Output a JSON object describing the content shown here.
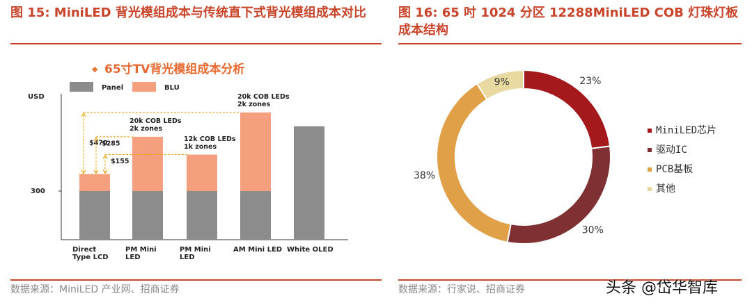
{
  "chart_data": [
    {
      "type": "bar",
      "stacked": true,
      "heading": "图 15: MiniLED 背光模组成本与传统直下式背光模组成本对比",
      "title": "65寸TV背光模组成本分析",
      "y_label": "USD",
      "categories": [
        "Direct Type LCD",
        "PM Mini LED",
        "PM Mini LED",
        "AM Mini LED",
        "White OLED"
      ],
      "series": [
        {
          "name": "Panel",
          "color": "#8c8c8c",
          "values": [
            300,
            300,
            300,
            300,
            700
          ]
        },
        {
          "name": "BLU",
          "color": "#f4a07e",
          "values": [
            105,
            335,
            225,
            485,
            null
          ]
        }
      ],
      "ylim": [
        0,
        900
      ],
      "yticks": [
        300
      ],
      "grid": false,
      "annotations": [
        "$470",
        "$285",
        "$155"
      ],
      "bar_notes": [
        "20k COB LEDs 2k zones",
        "12k COB LEDs 1k zones",
        "20k COB LEDs 2k zones"
      ],
      "source": "数据来源：MiniLED 产业网、招商证券"
    },
    {
      "type": "pie",
      "donut": true,
      "heading": "图 16: 65 吋 1024 分区 12288MiniLED COB 灯珠灯板成本结构",
      "labels": [
        "MiniLED芯片",
        "驱动IC",
        "PCB基板",
        "其他"
      ],
      "values": [
        23,
        30,
        38,
        9
      ],
      "value_labels": [
        "23%",
        "30%",
        "38%",
        "9%"
      ],
      "colors": [
        "#a3191c",
        "#7f3032",
        "#e0a048",
        "#e8d9a0"
      ],
      "source": "数据来源：行家说、招商证券"
    }
  ],
  "watermark": "头条 @岱华智库"
}
